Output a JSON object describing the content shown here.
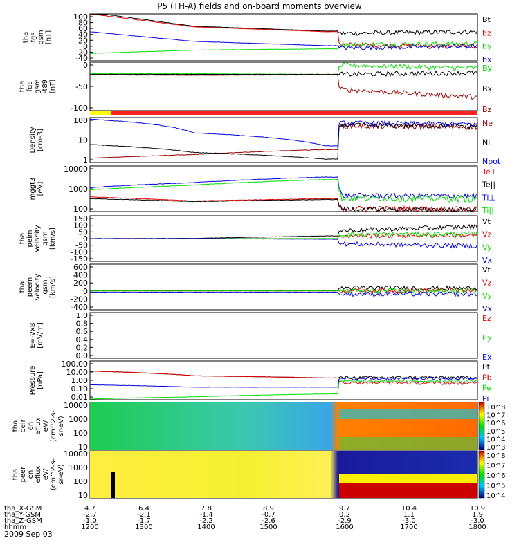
{
  "title": "P5 (TH-A) fields and on-board moments overview",
  "date_label": "2009 Sep 03",
  "colors": {
    "black": "#000000",
    "red": "#e00000",
    "green": "#00dd00",
    "blue": "#0000dd",
    "darkred": "#990000",
    "yellow": "#ffff00"
  },
  "chart_data": [
    {
      "type": "line",
      "ylabel": [
        "tha",
        "fgs",
        "gsm",
        "[nT]"
      ],
      "y_ticks": [
        "100",
        "80",
        "60",
        "40",
        "20",
        "0",
        "-20",
        "-40"
      ],
      "ylim": [
        -45,
        100
      ],
      "legend": [
        "Bt",
        "bz",
        "by",
        "bx"
      ],
      "series": [
        {
          "name": "Bt",
          "values": [
            105,
            62,
            47,
            40,
            45
          ]
        },
        {
          "name": "bz",
          "values": [
            100,
            60,
            45,
            5,
            0
          ]
        },
        {
          "name": "by",
          "values": [
            -22,
            -12,
            -8,
            5,
            8
          ]
        },
        {
          "name": "bx",
          "values": [
            45,
            15,
            2,
            -5,
            0
          ]
        }
      ]
    },
    {
      "type": "line",
      "ylabel": [
        "tha",
        "fgs",
        "gsm",
        "-t89",
        "[nT]"
      ],
      "y_ticks": [
        "0",
        "-50",
        "-100"
      ],
      "ylim": [
        -120,
        40
      ],
      "legend": [
        "By",
        "Bx",
        "Bz"
      ],
      "series": [
        {
          "name": "By",
          "values": [
            2,
            2,
            0,
            30,
            20
          ]
        },
        {
          "name": "Bx",
          "values": [
            0,
            0,
            0,
            0,
            5
          ]
        },
        {
          "name": "Bz",
          "values": [
            -2,
            -3,
            -2,
            -50,
            -75
          ]
        }
      ]
    },
    {
      "type": "line",
      "ylabel": [
        "Density",
        "[cm-3]"
      ],
      "y_ticks": [
        "100",
        "10",
        "1"
      ],
      "log": true,
      "ylim": [
        0.5,
        250
      ],
      "legend": [
        "Ne",
        "Ni",
        "Npot"
      ],
      "series": [
        {
          "name": "Ne",
          "values": [
            0.9,
            1.5,
            3,
            80,
            70
          ]
        },
        {
          "name": "Ni",
          "values": [
            6,
            2,
            0.8,
            90,
            80
          ]
        },
        {
          "name": "Npot",
          "values": [
            200,
            30,
            5,
            120,
            100
          ]
        }
      ]
    },
    {
      "type": "line",
      "ylabel": [
        "mggt3",
        "[eV]"
      ],
      "y_ticks": [
        "10000",
        "1000",
        "100"
      ],
      "log": true,
      "ylim": [
        40,
        12000
      ],
      "legend": [
        "Te⊥",
        "Te||",
        "Ti⊥",
        "Ti||"
      ],
      "series": [
        {
          "name": "Te⊥",
          "values": [
            250,
            150,
            200,
            60,
            55
          ]
        },
        {
          "name": "Te||",
          "values": [
            200,
            140,
            180,
            55,
            50
          ]
        },
        {
          "name": "Ti⊥",
          "values": [
            800,
            1500,
            3000,
            300,
            280
          ]
        },
        {
          "name": "Ti||",
          "values": [
            600,
            1100,
            2200,
            220,
            200
          ]
        }
      ]
    },
    {
      "type": "line",
      "ylabel": [
        "tha",
        "peim",
        "velocity",
        "gsm",
        "[km/s]"
      ],
      "y_ticks": [
        "150",
        "100",
        "50",
        "0",
        "-50",
        "-100",
        "-150"
      ],
      "ylim": [
        -170,
        170
      ],
      "legend": [
        "Vt",
        "Vz",
        "Vy",
        "Vx"
      ],
      "series": [
        {
          "name": "Vt",
          "values": [
            0,
            2,
            20,
            60,
            90
          ]
        },
        {
          "name": "Vz",
          "values": [
            0,
            0,
            0,
            20,
            25
          ]
        },
        {
          "name": "Vy",
          "values": [
            0,
            0,
            0,
            30,
            35
          ]
        },
        {
          "name": "Vx",
          "values": [
            0,
            0,
            -5,
            -40,
            -55
          ]
        }
      ]
    },
    {
      "type": "line",
      "ylabel": [
        "tha",
        "peem",
        "velocity",
        "gsm",
        "[km/s]"
      ],
      "y_ticks": [
        "600",
        "400",
        "200",
        "0",
        "-200",
        "-400"
      ],
      "ylim": [
        -420,
        620
      ],
      "legend": [
        "Vt",
        "Vz",
        "Vy",
        "Vx"
      ],
      "series": [
        {
          "name": "Vt",
          "values": [
            20,
            20,
            20,
            80,
            70
          ]
        },
        {
          "name": "Vz",
          "values": [
            10,
            10,
            10,
            20,
            20
          ]
        },
        {
          "name": "Vy",
          "values": [
            10,
            10,
            10,
            10,
            10
          ]
        },
        {
          "name": "Vx",
          "values": [
            -20,
            -20,
            -20,
            -60,
            -60
          ]
        }
      ]
    },
    {
      "type": "line",
      "ylabel": [
        "E=-VxB",
        "[mV/m]"
      ],
      "y_ticks": [
        "1.0",
        "0.8",
        "0.6",
        "0.4",
        "0.2",
        "0.0"
      ],
      "ylim": [
        0,
        1
      ],
      "legend": [
        "Ez",
        "Ey",
        "Ex"
      ],
      "series": []
    },
    {
      "type": "line",
      "ylabel": [
        "Pressure",
        "[nPa]"
      ],
      "y_ticks": [
        "100.00",
        "10.00",
        "1.00",
        "0.10",
        "0.01"
      ],
      "log": true,
      "ylim": [
        0.01,
        100
      ],
      "legend": [
        "Pt",
        "Pb",
        "Pe",
        "Pi"
      ],
      "series": [
        {
          "name": "Pt",
          "values": [
            9,
            3,
            1.8,
            2,
            2
          ]
        },
        {
          "name": "Pb",
          "values": [
            9,
            3,
            1.8,
            0.6,
            0.5
          ]
        },
        {
          "name": "Pe",
          "values": [
            0.012,
            0.02,
            0.04,
            0.8,
            0.9
          ]
        },
        {
          "name": "Pi",
          "values": [
            0.35,
            0.2,
            0.2,
            1.5,
            1.6
          ]
        }
      ]
    },
    {
      "type": "heatmap",
      "ylabel": [
        "tha",
        "peir",
        "en",
        "eflux",
        "eV/",
        "(cm^2-s-",
        "sr-eV)"
      ],
      "y_ticks": [
        "10000",
        "1000",
        "100",
        "10"
      ],
      "colorbar_ticks": [
        "10^8",
        "10^7",
        "10^6",
        "10^5",
        "10^4",
        "10^3"
      ]
    },
    {
      "type": "heatmap",
      "ylabel": [
        "tha",
        "peer",
        "en",
        "eflux",
        "eV/",
        "(cm^2-s-",
        "sr-eV)"
      ],
      "y_ticks": [
        "10000",
        "1000",
        "100",
        "10"
      ],
      "colorbar_ticks": [
        "10^8",
        "10^7",
        "10^6",
        "10^5",
        "10^4"
      ]
    }
  ],
  "x_axis": {
    "row_labels": [
      "tha_X-GSM",
      "tha_Y-GSM",
      "tha_Z-GSM",
      "hhmm"
    ],
    "columns": [
      [
        "4.7",
        "-2.7",
        "-1.0",
        "1200"
      ],
      [
        "6.4",
        "-2.1",
        "-1.7",
        "1300"
      ],
      [
        "7.8",
        "-1.4",
        "-2.2",
        "1400"
      ],
      [
        "8.9",
        "-0.7",
        "-2.6",
        "1500"
      ],
      [
        "9.7",
        "0.2",
        "-2.9",
        "1600"
      ],
      [
        "10.4",
        "1.1",
        "-3.0",
        "1700"
      ],
      [
        "10.9",
        "1.9",
        "-3.0",
        "1800"
      ]
    ]
  }
}
